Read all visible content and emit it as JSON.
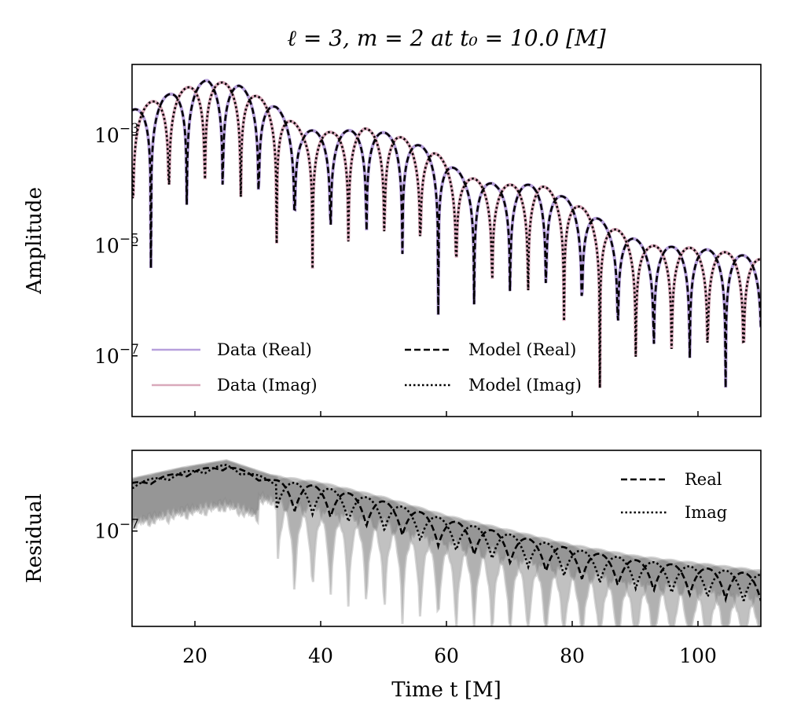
{
  "chart_data": [
    {
      "type": "line",
      "title": "ℓ = 3, m = 2 at t₀ = 10.0 [M]",
      "ylabel": "Amplitude",
      "yscale": "log",
      "xlim": [
        10,
        110
      ],
      "ylim_log10": [
        -8.1,
        -1.72
      ],
      "yticks": [
        {
          "exp": -3,
          "label": "10",
          "sup": "−3"
        },
        {
          "exp": -5,
          "label": "10",
          "sup": "−5"
        },
        {
          "exp": -7,
          "label": "10",
          "sup": "−7"
        }
      ],
      "legend": [
        "Data (Real)",
        "Data (Imag)",
        "Model (Real)",
        "Model (Imag)"
      ],
      "legend_position": "lower-left",
      "colors": {
        "data_real": "#b7a0dc",
        "data_imag": "#d9a9bb",
        "model": "#000000"
      },
      "omega": 0.55,
      "phase": 0.703,
      "envelope_log10": [
        [
          10,
          -2.55
        ],
        [
          15,
          -2.3
        ],
        [
          22,
          -2.0
        ],
        [
          27,
          -2.1
        ],
        [
          33,
          -2.5
        ],
        [
          37,
          -2.9
        ],
        [
          42,
          -2.95
        ],
        [
          47,
          -2.88
        ],
        [
          52,
          -3.0
        ],
        [
          58,
          -3.3
        ],
        [
          63,
          -3.75
        ],
        [
          68,
          -3.9
        ],
        [
          75,
          -3.9
        ],
        [
          80,
          -4.2
        ],
        [
          86,
          -4.65
        ],
        [
          92,
          -5.0
        ],
        [
          100,
          -5.05
        ],
        [
          106,
          -5.15
        ],
        [
          110,
          -5.25
        ]
      ]
    },
    {
      "type": "area",
      "ylabel": "Residual",
      "xlabel": "Time t [M]",
      "yscale": "log",
      "xlim": [
        10,
        110
      ],
      "ylim_log10": [
        -8.3,
        -5.9
      ],
      "yticks": [
        {
          "exp": -7,
          "label": "10",
          "sup": "−7"
        }
      ],
      "xticks": [
        20,
        40,
        60,
        80,
        100
      ],
      "legend": [
        "Real",
        "Imag"
      ],
      "legend_position": "top-right",
      "envelope_log10": [
        [
          10,
          -6.35
        ],
        [
          18,
          -6.2
        ],
        [
          25,
          -6.1
        ],
        [
          32,
          -6.3
        ],
        [
          40,
          -6.4
        ],
        [
          50,
          -6.6
        ],
        [
          60,
          -6.85
        ],
        [
          70,
          -7.05
        ],
        [
          80,
          -7.25
        ],
        [
          90,
          -7.4
        ],
        [
          100,
          -7.5
        ],
        [
          110,
          -7.6
        ]
      ]
    }
  ]
}
